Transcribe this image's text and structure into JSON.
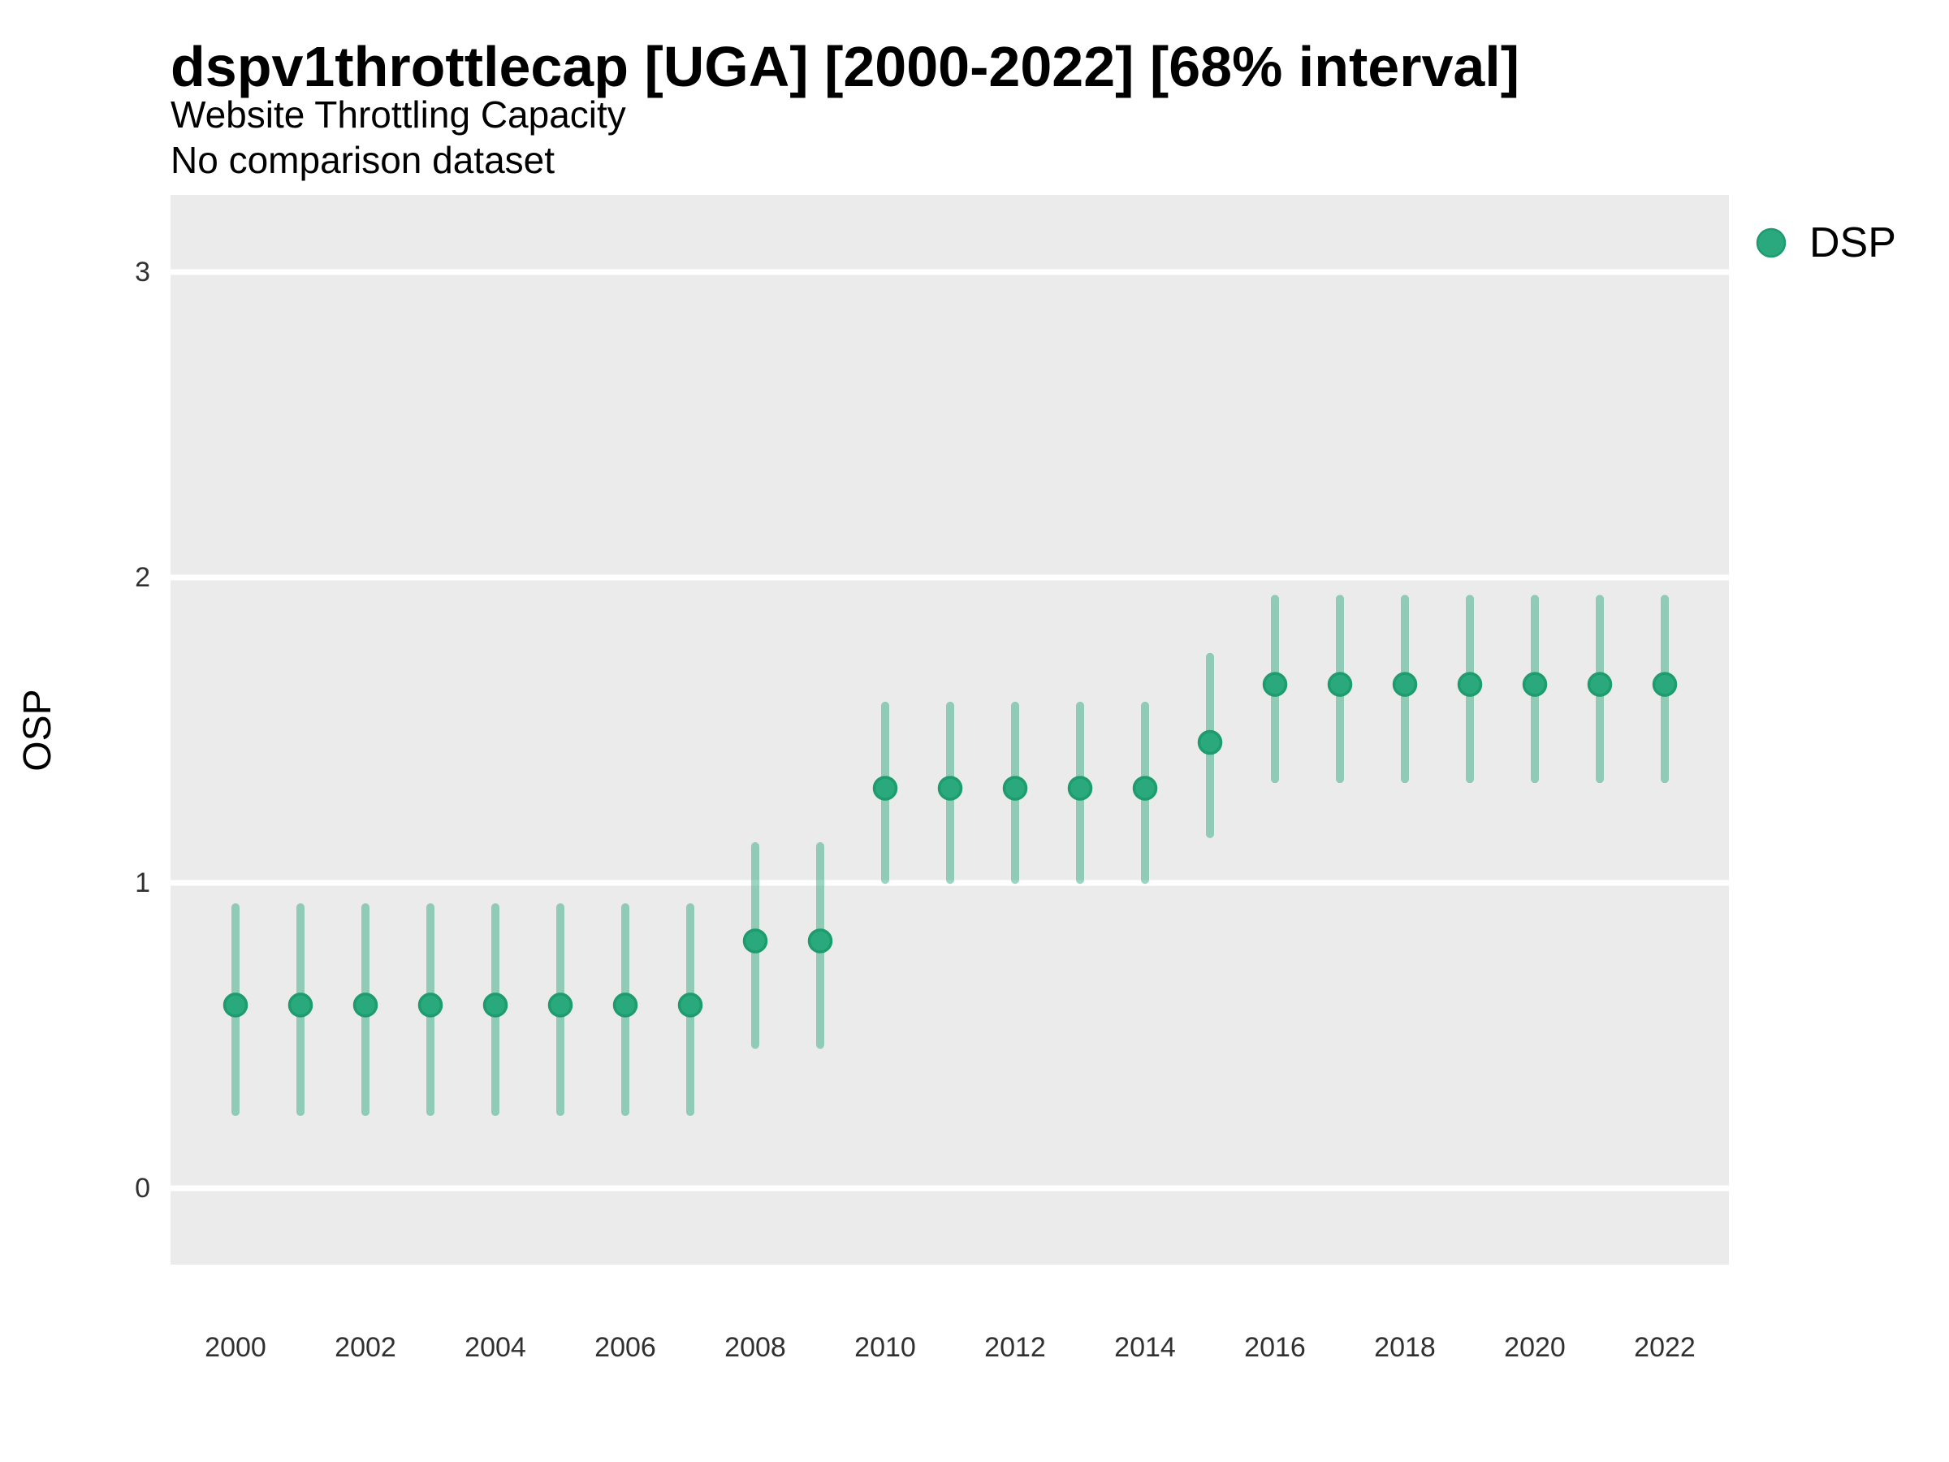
{
  "header": {
    "title": "dspv1throttlecap [UGA] [2000-2022] [68% interval]",
    "subtitle": "Website Throttling Capacity",
    "note": "No comparison dataset"
  },
  "chart_data": {
    "type": "scatter",
    "subtype": "pointrange-68pct-interval",
    "title": "dspv1throttlecap [UGA] [2000-2022] [68% interval]",
    "subtitle": "Website Throttling Capacity",
    "note": "No comparison dataset",
    "xlabel": "",
    "ylabel": "OSP",
    "ylim": [
      -0.25,
      3.25
    ],
    "yticks": [
      0,
      1,
      2,
      3
    ],
    "xticks": [
      2000,
      2002,
      2004,
      2006,
      2008,
      2010,
      2012,
      2014,
      2016,
      2018,
      2020,
      2022
    ],
    "grid": "horizontal major gridlines only, white on gray panel",
    "legend_position": "right",
    "legend": {
      "label": "DSP"
    },
    "colors": {
      "point_fill": "#2aa87e",
      "point_stroke": "#1e9c6e",
      "interval_bar": "rgba(42,168,126,0.48)",
      "panel_background": "#ebebeb",
      "gridline": "#ffffff",
      "axis_text": "#303030"
    },
    "series": [
      {
        "name": "DSP",
        "points": [
          {
            "year": 2000,
            "value": 0.6,
            "lo": 0.25,
            "hi": 0.92
          },
          {
            "year": 2001,
            "value": 0.6,
            "lo": 0.25,
            "hi": 0.92
          },
          {
            "year": 2002,
            "value": 0.6,
            "lo": 0.25,
            "hi": 0.92
          },
          {
            "year": 2003,
            "value": 0.6,
            "lo": 0.25,
            "hi": 0.92
          },
          {
            "year": 2004,
            "value": 0.6,
            "lo": 0.25,
            "hi": 0.92
          },
          {
            "year": 2005,
            "value": 0.6,
            "lo": 0.25,
            "hi": 0.92
          },
          {
            "year": 2006,
            "value": 0.6,
            "lo": 0.25,
            "hi": 0.92
          },
          {
            "year": 2007,
            "value": 0.6,
            "lo": 0.25,
            "hi": 0.92
          },
          {
            "year": 2008,
            "value": 0.81,
            "lo": 0.47,
            "hi": 1.12
          },
          {
            "year": 2009,
            "value": 0.81,
            "lo": 0.47,
            "hi": 1.12
          },
          {
            "year": 2010,
            "value": 1.31,
            "lo": 1.01,
            "hi": 1.58
          },
          {
            "year": 2011,
            "value": 1.31,
            "lo": 1.01,
            "hi": 1.58
          },
          {
            "year": 2012,
            "value": 1.31,
            "lo": 1.01,
            "hi": 1.58
          },
          {
            "year": 2013,
            "value": 1.31,
            "lo": 1.01,
            "hi": 1.58
          },
          {
            "year": 2014,
            "value": 1.31,
            "lo": 1.01,
            "hi": 1.58
          },
          {
            "year": 2015,
            "value": 1.46,
            "lo": 1.16,
            "hi": 1.74
          },
          {
            "year": 2016,
            "value": 1.65,
            "lo": 1.34,
            "hi": 1.93
          },
          {
            "year": 2017,
            "value": 1.65,
            "lo": 1.34,
            "hi": 1.93
          },
          {
            "year": 2018,
            "value": 1.65,
            "lo": 1.34,
            "hi": 1.93
          },
          {
            "year": 2019,
            "value": 1.65,
            "lo": 1.34,
            "hi": 1.93
          },
          {
            "year": 2020,
            "value": 1.65,
            "lo": 1.34,
            "hi": 1.93
          },
          {
            "year": 2021,
            "value": 1.65,
            "lo": 1.34,
            "hi": 1.93
          },
          {
            "year": 2022,
            "value": 1.65,
            "lo": 1.34,
            "hi": 1.93
          }
        ]
      }
    ]
  }
}
